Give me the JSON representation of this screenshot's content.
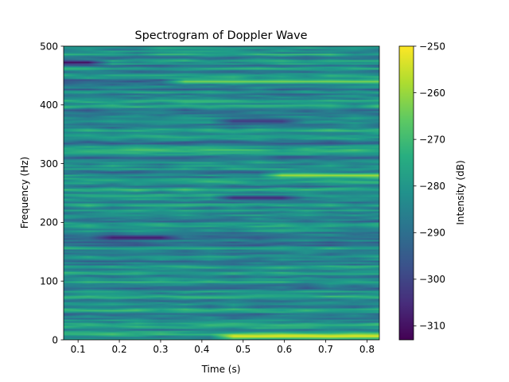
{
  "chart_data": {
    "type": "heatmap",
    "title": "Spectrogram of Doppler Wave",
    "xlabel": "Time (s)",
    "ylabel": "Frequency (Hz)",
    "xlim": [
      0.065,
      0.83
    ],
    "ylim": [
      0,
      500
    ],
    "x_ticks": [
      "0.1",
      "0.2",
      "0.3",
      "0.4",
      "0.5",
      "0.6",
      "0.7",
      "0.8"
    ],
    "y_ticks": [
      "0",
      "100",
      "200",
      "300",
      "400",
      "500"
    ],
    "colormap": "viridis",
    "colorbar": {
      "label": "Intensity (dB)",
      "range": [
        -313,
        -250
      ],
      "ticks": [
        "−250",
        "−260",
        "−270",
        "−280",
        "−290",
        "−300",
        "−310"
      ]
    },
    "features": [
      {
        "freq_hz": 440,
        "t_start": 0.35,
        "t_end": 0.83,
        "level_db": -262
      },
      {
        "freq_hz": 280,
        "t_start": 0.58,
        "t_end": 0.83,
        "level_db": -258
      },
      {
        "freq_hz": 5,
        "t_start": 0.45,
        "t_end": 0.83,
        "level_db": -252
      },
      {
        "freq_hz": 175,
        "t_start": 0.17,
        "t_end": 0.32,
        "level_db": -308
      },
      {
        "freq_hz": 473,
        "t_start": 0.065,
        "t_end": 0.15,
        "level_db": -312
      },
      {
        "freq_hz": 242,
        "t_start": 0.45,
        "t_end": 0.58,
        "level_db": -306
      },
      {
        "freq_hz": 372,
        "t_start": 0.45,
        "t_end": 0.58,
        "level_db": -302
      }
    ]
  }
}
